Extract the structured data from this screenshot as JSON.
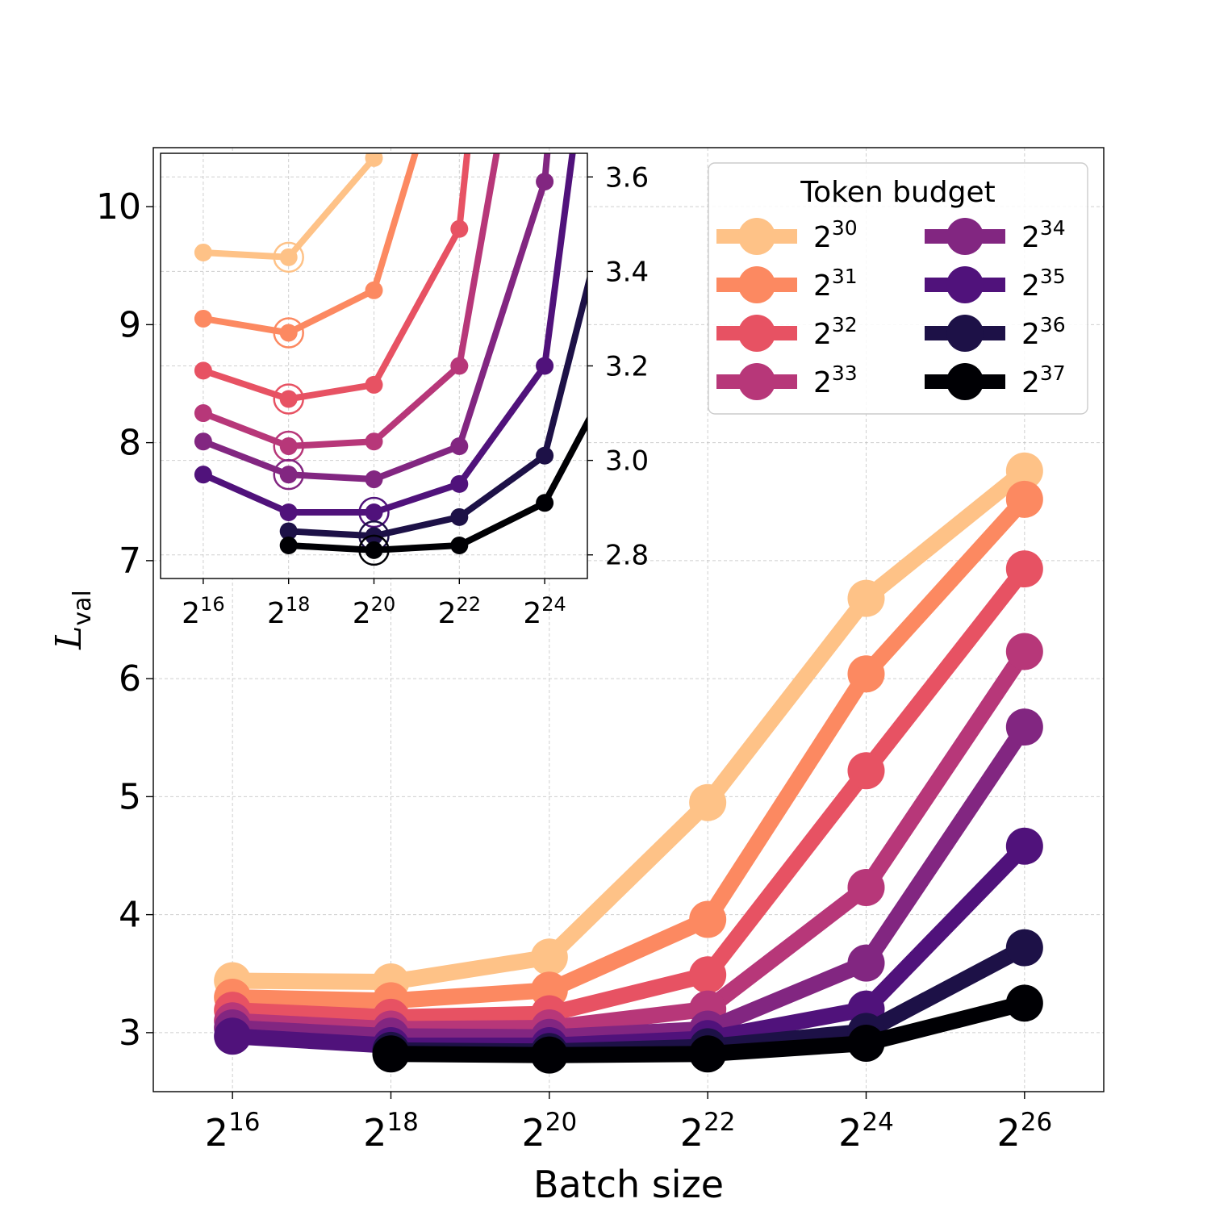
{
  "chart_data": {
    "type": "line",
    "xlabel": "Batch size",
    "ylabel": "val",
    "ylabel_base": "L",
    "x_exponents": [
      16,
      18,
      20,
      22,
      24,
      26
    ],
    "x_tick_base": "2",
    "x_tick_labels": [
      "16",
      "18",
      "20",
      "22",
      "24",
      "26"
    ],
    "xlim_log2": [
      15,
      27
    ],
    "ylim": [
      2.5,
      10.5
    ],
    "y_ticks": [
      3,
      4,
      5,
      6,
      7,
      8,
      9,
      10
    ],
    "y_tick_labels": [
      "3",
      "4",
      "5",
      "6",
      "7",
      "8",
      "9",
      "10"
    ],
    "grid": true,
    "legend": {
      "title": "Token budget",
      "location": "top-right",
      "base": "2",
      "columns": 2
    },
    "series": [
      {
        "name": "30",
        "color": "#fec287",
        "x": [
          16,
          18,
          20,
          22,
          24,
          26
        ],
        "values": [
          3.44,
          3.43,
          3.64,
          4.95,
          6.68,
          7.76
        ]
      },
      {
        "name": "31",
        "color": "#fc8961",
        "x": [
          16,
          18,
          20,
          22,
          24,
          26
        ],
        "values": [
          3.3,
          3.27,
          3.36,
          3.96,
          6.04,
          7.52
        ]
      },
      {
        "name": "32",
        "color": "#e75263",
        "x": [
          16,
          18,
          20,
          22,
          24,
          26
        ],
        "values": [
          3.19,
          3.13,
          3.16,
          3.49,
          5.22,
          6.93
        ]
      },
      {
        "name": "33",
        "color": "#b73779",
        "x": [
          16,
          18,
          20,
          22,
          24,
          26
        ],
        "values": [
          3.1,
          3.03,
          3.04,
          3.2,
          4.23,
          6.23
        ]
      },
      {
        "name": "34",
        "color": "#822681",
        "x": [
          16,
          18,
          20,
          22,
          24,
          26
        ],
        "values": [
          3.04,
          2.97,
          2.96,
          3.03,
          3.59,
          5.59
        ]
      },
      {
        "name": "35",
        "color": "#50127b",
        "x": [
          16,
          18,
          20,
          22,
          24,
          26
        ],
        "values": [
          2.97,
          2.89,
          2.89,
          2.95,
          3.2,
          4.58
        ]
      },
      {
        "name": "36",
        "color": "#1d1147",
        "x": [
          18,
          20,
          22,
          24,
          26
        ],
        "values": [
          2.85,
          2.84,
          2.88,
          3.01,
          3.72
        ]
      },
      {
        "name": "37",
        "color": "#000004",
        "x": [
          18,
          20,
          22,
          24,
          26
        ],
        "values": [
          2.82,
          2.81,
          2.82,
          2.91,
          3.25
        ]
      }
    ],
    "inset": {
      "xlim_log2": [
        15,
        25
      ],
      "ylim": [
        2.75,
        3.65
      ],
      "x_exponents": [
        16,
        18,
        20,
        22,
        24
      ],
      "x_tick_labels": [
        "16",
        "18",
        "20",
        "22",
        "24"
      ],
      "y_ticks": [
        2.8,
        3.0,
        3.2,
        3.4,
        3.6
      ],
      "y_tick_labels": [
        "2.8",
        "3.0",
        "3.2",
        "3.4",
        "3.6"
      ],
      "optimum_marked_at": [
        18,
        18,
        18,
        18,
        18,
        20,
        20,
        20
      ]
    }
  }
}
